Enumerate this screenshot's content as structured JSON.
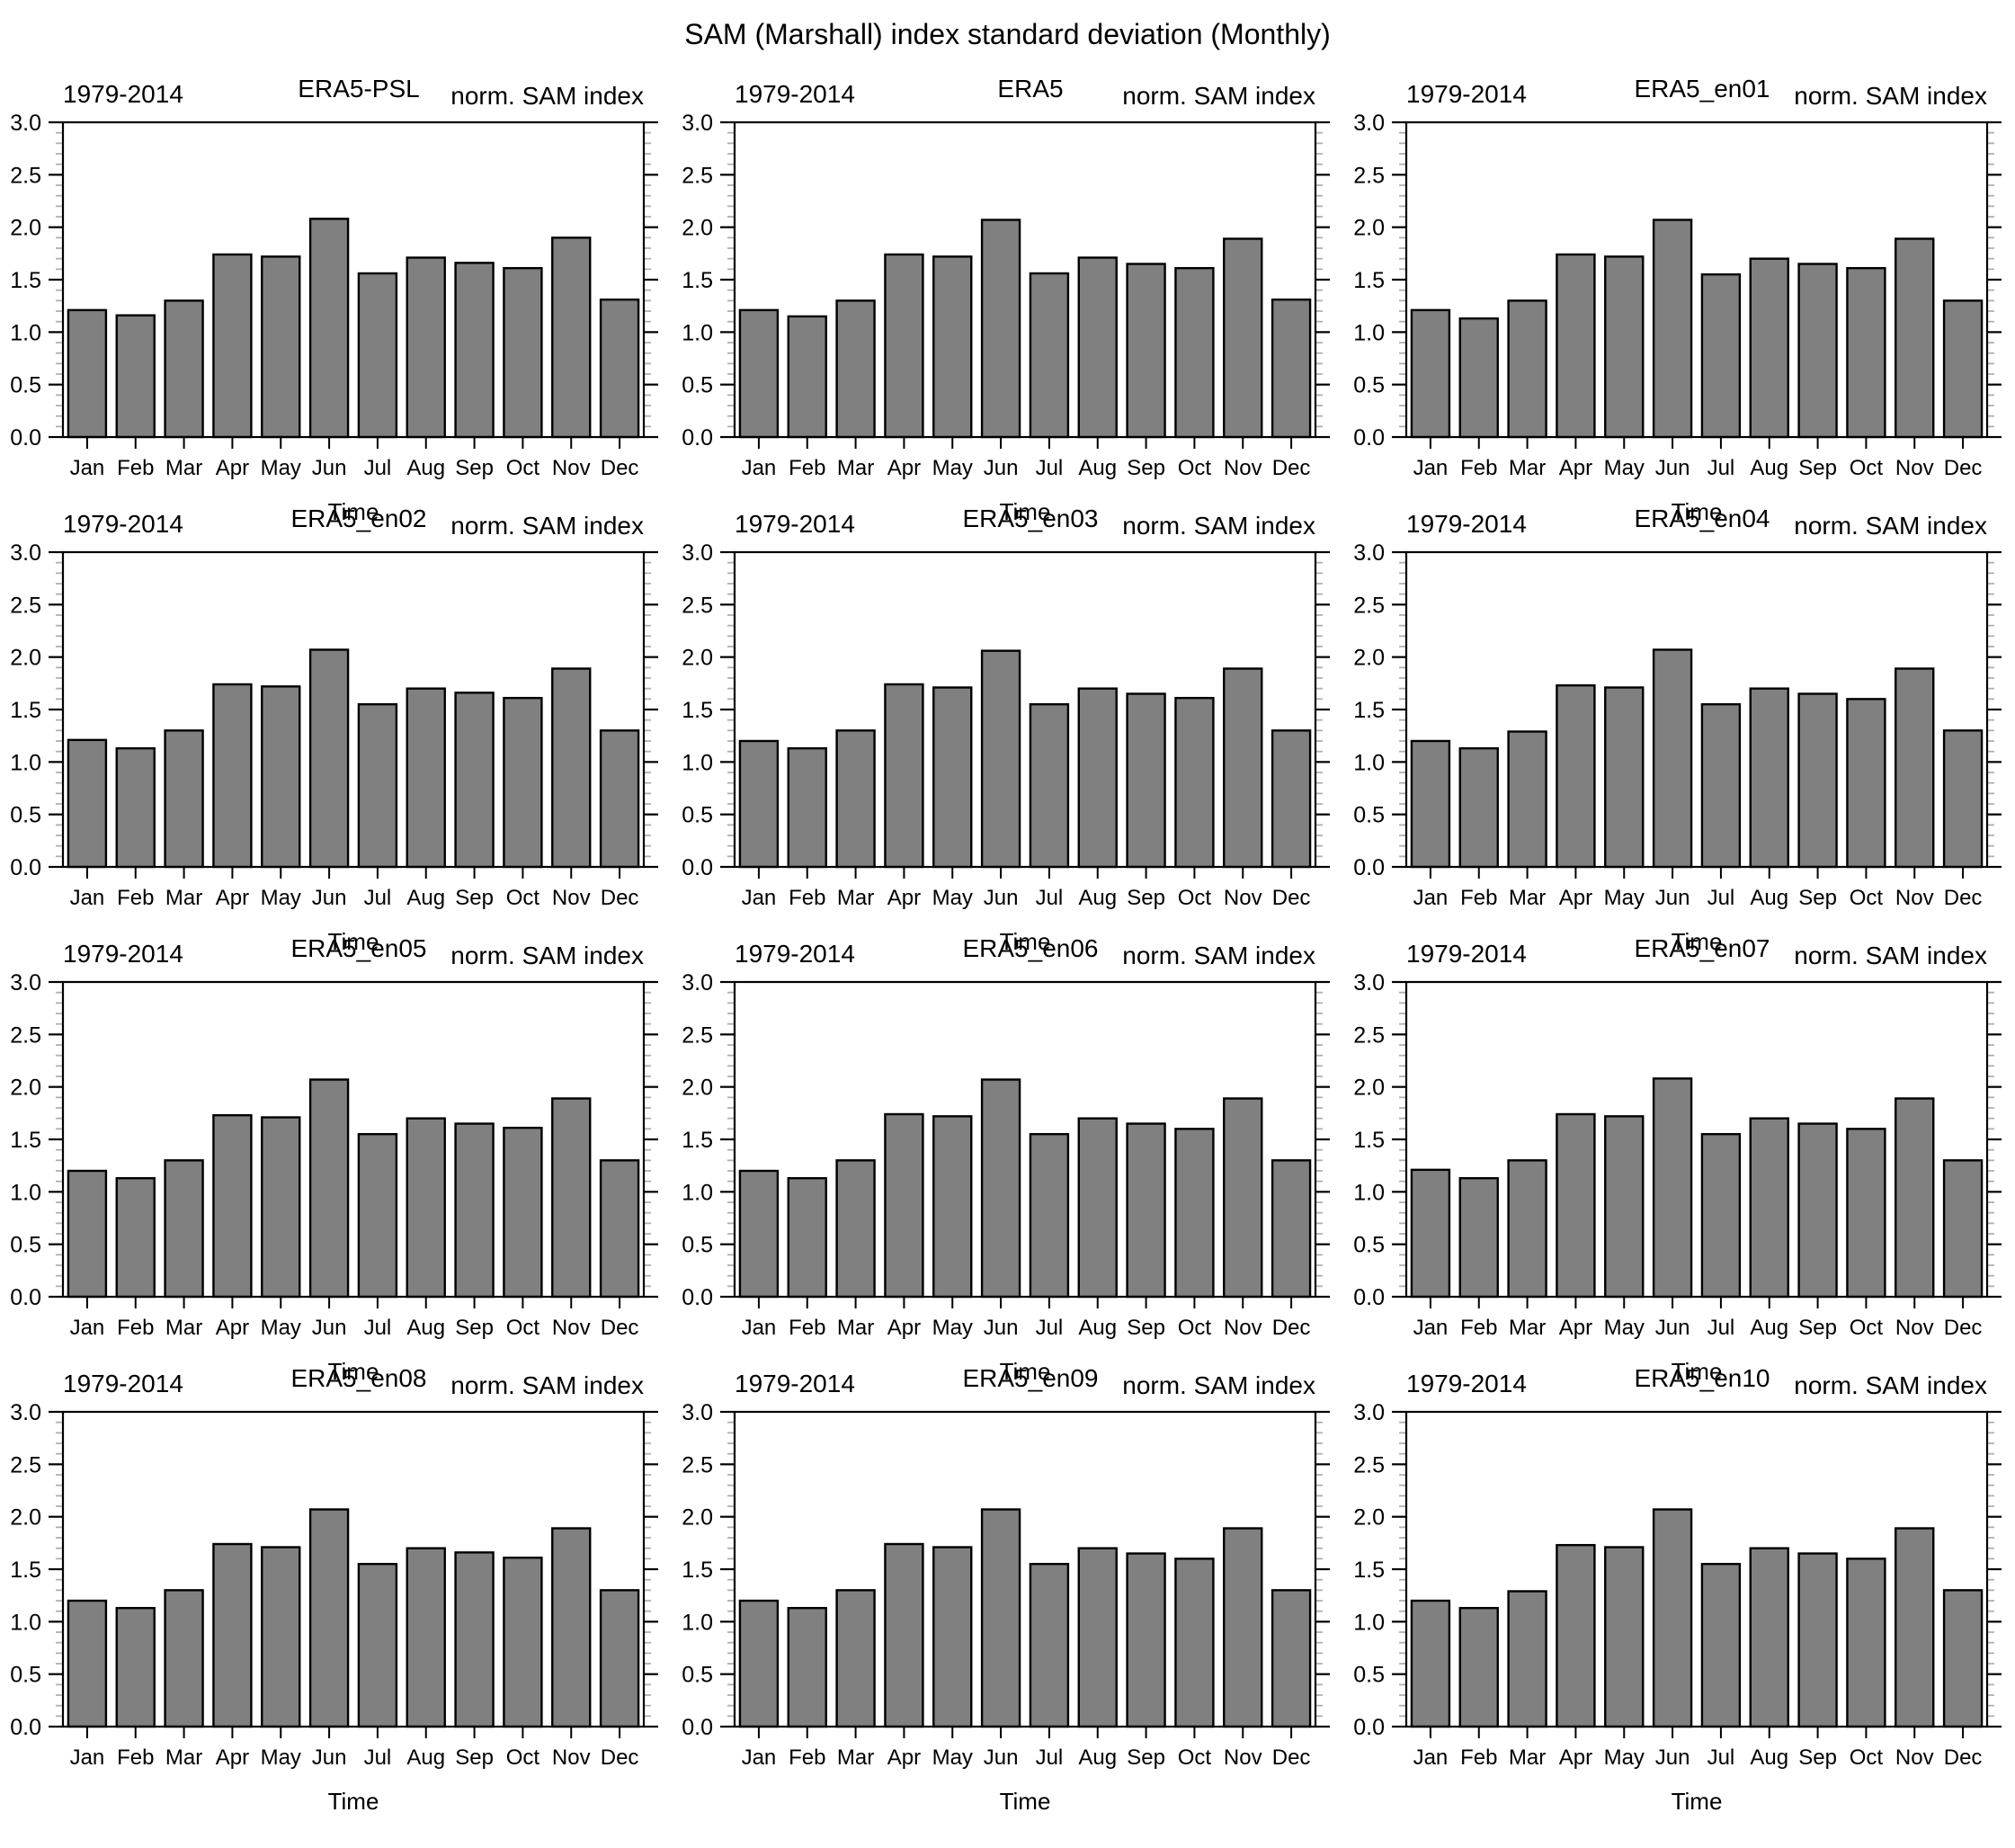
{
  "main_title": "SAM (Marshall) index standard deviation (Monthly)",
  "chart_data": {
    "type": "bar",
    "layout": "grid-4rows-3cols",
    "period_label": "1979-2014",
    "right_title": "norm. SAM index",
    "xlabel": "Time",
    "categories": [
      "Jan",
      "Feb",
      "Mar",
      "Apr",
      "May",
      "Jun",
      "Jul",
      "Aug",
      "Sep",
      "Oct",
      "Nov",
      "Dec"
    ],
    "ylim": [
      0.0,
      3.0
    ],
    "ytick_step": 0.5,
    "ytick_labels": [
      "0.0",
      "0.5",
      "1.0",
      "1.5",
      "2.0",
      "2.5",
      "3.0"
    ],
    "yminor_step": 0.1,
    "grid": "off",
    "legend": "none",
    "bar_fill": "#808080",
    "bar_edge": "#000000",
    "axis_color": "#000000",
    "minor_tick_color": "#b0b0b0",
    "panels": [
      {
        "dataset": "ERA5-PSL",
        "values": [
          1.21,
          1.16,
          1.3,
          1.74,
          1.72,
          2.08,
          1.56,
          1.71,
          1.66,
          1.61,
          1.9,
          1.31
        ]
      },
      {
        "dataset": "ERA5",
        "values": [
          1.21,
          1.15,
          1.3,
          1.74,
          1.72,
          2.07,
          1.56,
          1.71,
          1.65,
          1.61,
          1.89,
          1.31
        ]
      },
      {
        "dataset": "ERA5_en01",
        "values": [
          1.21,
          1.13,
          1.3,
          1.74,
          1.72,
          2.07,
          1.55,
          1.7,
          1.65,
          1.61,
          1.89,
          1.3
        ]
      },
      {
        "dataset": "ERA5_en02",
        "values": [
          1.21,
          1.13,
          1.3,
          1.74,
          1.72,
          2.07,
          1.55,
          1.7,
          1.66,
          1.61,
          1.89,
          1.3
        ]
      },
      {
        "dataset": "ERA5_en03",
        "values": [
          1.2,
          1.13,
          1.3,
          1.74,
          1.71,
          2.06,
          1.55,
          1.7,
          1.65,
          1.61,
          1.89,
          1.3
        ]
      },
      {
        "dataset": "ERA5_en04",
        "values": [
          1.2,
          1.13,
          1.29,
          1.73,
          1.71,
          2.07,
          1.55,
          1.7,
          1.65,
          1.6,
          1.89,
          1.3
        ]
      },
      {
        "dataset": "ERA5_en05",
        "values": [
          1.2,
          1.13,
          1.3,
          1.73,
          1.71,
          2.07,
          1.55,
          1.7,
          1.65,
          1.61,
          1.89,
          1.3
        ]
      },
      {
        "dataset": "ERA5_en06",
        "values": [
          1.2,
          1.13,
          1.3,
          1.74,
          1.72,
          2.07,
          1.55,
          1.7,
          1.65,
          1.6,
          1.89,
          1.3
        ]
      },
      {
        "dataset": "ERA5_en07",
        "values": [
          1.21,
          1.13,
          1.3,
          1.74,
          1.72,
          2.08,
          1.55,
          1.7,
          1.65,
          1.6,
          1.89,
          1.3
        ]
      },
      {
        "dataset": "ERA5_en08",
        "values": [
          1.2,
          1.13,
          1.3,
          1.74,
          1.71,
          2.07,
          1.55,
          1.7,
          1.66,
          1.61,
          1.89,
          1.3
        ]
      },
      {
        "dataset": "ERA5_en09",
        "values": [
          1.2,
          1.13,
          1.3,
          1.74,
          1.71,
          2.07,
          1.55,
          1.7,
          1.65,
          1.6,
          1.89,
          1.3
        ]
      },
      {
        "dataset": "ERA5_en10",
        "values": [
          1.2,
          1.13,
          1.29,
          1.73,
          1.71,
          2.07,
          1.55,
          1.7,
          1.65,
          1.6,
          1.89,
          1.3
        ]
      }
    ]
  }
}
